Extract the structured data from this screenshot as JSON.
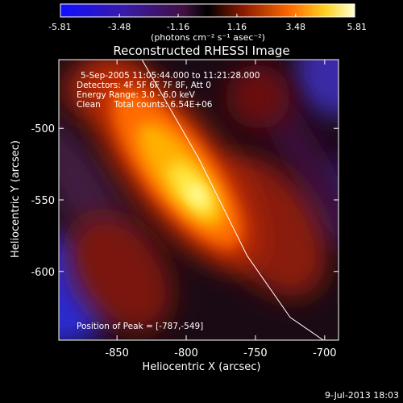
{
  "colorbar": {
    "ticks": [
      "-5.81",
      "-3.48",
      "-1.16",
      "1.16",
      "3.48",
      "5.81"
    ],
    "unit_label": "(photons cm⁻² s⁻¹ asec⁻²)",
    "range": [
      -5.81,
      5.81
    ]
  },
  "title": "Reconstructed RHESSI Image",
  "info": {
    "line1": "5-Sep-2005 11:05:44.000 to 11:21:28.000",
    "line2": "Detectors: 4F 5F 6F 7F 8F, Att 0",
    "line3": "Energy Range: 3.0 - 6.0 keV",
    "line4": "Clean     Total counts: 6.54E+06"
  },
  "peak_label": "Position of Peak = [-787,-549]",
  "footer_date": "9-Jul-2013 18:03",
  "colors": {
    "limb": "#ffffff",
    "background": "#000000"
  },
  "chart_data": {
    "type": "heatmap",
    "title": "Reconstructed RHESSI Image",
    "xlabel": "Heliocentric X (arcsec)",
    "ylabel": "Heliocentric Y (arcsec)",
    "xlim": [
      -892,
      -690
    ],
    "ylim": [
      -648,
      -452
    ],
    "x_ticks": [
      {
        "value": -850,
        "label": "-850"
      },
      {
        "value": -800,
        "label": "-800"
      },
      {
        "value": -750,
        "label": "-750"
      },
      {
        "value": -700,
        "label": "-700"
      }
    ],
    "y_ticks": [
      {
        "value": -500,
        "label": "-500"
      },
      {
        "value": -550,
        "label": "-550"
      },
      {
        "value": -600,
        "label": "-600"
      }
    ],
    "peak": {
      "x": -787,
      "y": -549
    },
    "limb_line": [
      {
        "x": -832,
        "y": -452
      },
      {
        "x": -791,
        "y": -521
      },
      {
        "x": -756,
        "y": -589
      },
      {
        "x": -725,
        "y": -632
      },
      {
        "x": -701,
        "y": -648
      }
    ]
  }
}
